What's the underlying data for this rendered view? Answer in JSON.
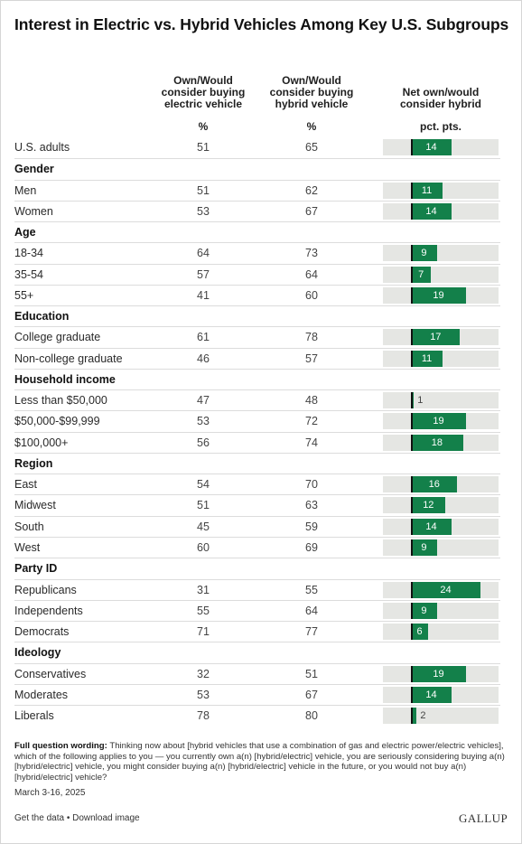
{
  "title": "Interest in Electric vs. Hybrid Vehicles Among Key U.S. Subgroups",
  "columns": {
    "electric": {
      "header": [
        "Own/Would",
        "consider buying",
        "electric vehicle"
      ],
      "unit": "%"
    },
    "hybrid": {
      "header": [
        "Own/Would",
        "consider buying",
        "hybrid vehicle"
      ],
      "unit": "%"
    },
    "net": {
      "header": [
        "Net own/would",
        "consider hybrid"
      ],
      "unit": "pct. pts."
    }
  },
  "chart_data": {
    "type": "table",
    "title": "Interest in Electric vs. Hybrid Vehicles Among Key U.S. Subgroups",
    "bar_column": "Net own/would consider hybrid",
    "bar_unit": "pct. pts.",
    "bar_range": [
      0,
      24
    ],
    "colors": {
      "bar": "#13804a",
      "track": "#e5e6e3"
    },
    "rows": [
      {
        "label": "U.S. adults",
        "electric": "51",
        "hybrid": "65",
        "net": 14
      },
      {
        "group": "Gender"
      },
      {
        "label": "Men",
        "electric": "51",
        "hybrid": "62",
        "net": 11
      },
      {
        "label": "Women",
        "electric": "53",
        "hybrid": "67",
        "net": 14
      },
      {
        "group": "Age"
      },
      {
        "label": "18-34",
        "electric": "64",
        "hybrid": "73",
        "net": 9
      },
      {
        "label": "35-54",
        "electric": "57",
        "hybrid": "64",
        "net": 7
      },
      {
        "label": "55+",
        "electric": "41",
        "hybrid": "60",
        "net": 19
      },
      {
        "group": "Education"
      },
      {
        "label": "College graduate",
        "electric": "61",
        "hybrid": "78",
        "net": 17
      },
      {
        "label": "Non-college graduate",
        "electric": "46",
        "hybrid": "57",
        "net": 11
      },
      {
        "group": "Household income"
      },
      {
        "label": "Less than $50,000",
        "electric": "47",
        "hybrid": "48",
        "net": 1
      },
      {
        "label": "$50,000-$99,999",
        "electric": "53",
        "hybrid": "72",
        "net": 19
      },
      {
        "label": "$100,000+",
        "electric": "56",
        "hybrid": "74",
        "net": 18
      },
      {
        "group": "Region"
      },
      {
        "label": "East",
        "electric": "54",
        "hybrid": "70",
        "net": 16
      },
      {
        "label": "Midwest",
        "electric": "51",
        "hybrid": "63",
        "net": 12
      },
      {
        "label": "South",
        "electric": "45",
        "hybrid": "59",
        "net": 14
      },
      {
        "label": "West",
        "electric": "60",
        "hybrid": "69",
        "net": 9
      },
      {
        "group": "Party ID"
      },
      {
        "label": "Republicans",
        "electric": "31",
        "hybrid": "55",
        "net": 24
      },
      {
        "label": "Independents",
        "electric": "55",
        "hybrid": "64",
        "net": 9
      },
      {
        "label": "Democrats",
        "electric": "71",
        "hybrid": "77",
        "net": 6
      },
      {
        "group": "Ideology"
      },
      {
        "label": "Conservatives",
        "electric": "32",
        "hybrid": "51",
        "net": 19
      },
      {
        "label": "Moderates",
        "electric": "53",
        "hybrid": "67",
        "net": 14
      },
      {
        "label": "Liberals",
        "electric": "78",
        "hybrid": "80",
        "net": 2
      }
    ]
  },
  "footnote": {
    "label": "Full question wording:",
    "text": " Thinking now about [hybrid vehicles that use a combination of gas and electric power/electric vehicles], which of the following applies to you — you currently own a(n) [hybrid/electric] vehicle, you are seriously considering buying a(n) [hybrid/electric] vehicle, you might consider buying a(n) [hybrid/electric] vehicle in the future, or you would not buy a(n) [hybrid/electric] vehicle?"
  },
  "date": "March 3-16, 2025",
  "links": {
    "get_data": "Get the data",
    "separator": " • ",
    "download": "Download image"
  },
  "brand": "GALLUP"
}
